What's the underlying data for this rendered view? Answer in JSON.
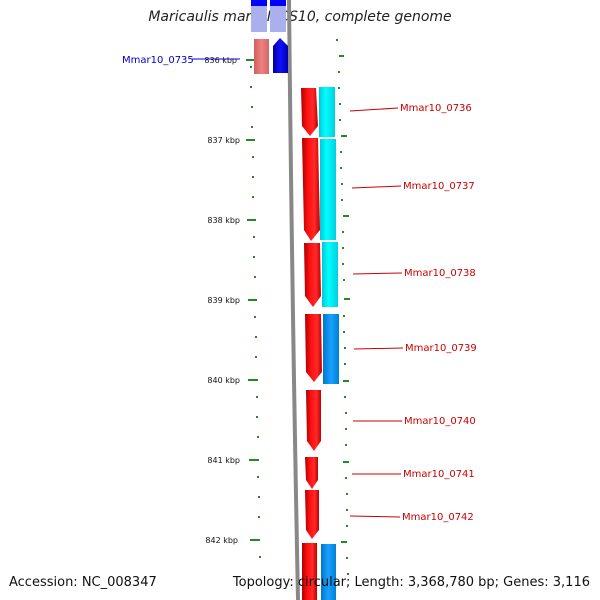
{
  "title": "Maricaulis maris MCS10, complete genome",
  "footer": {
    "accession": "Accession: NC_008347",
    "topology": "Topology: circular; Length: 3,368,780 bp; Genes: 3,116"
  },
  "colors": {
    "forward_cds": "#ff0000",
    "reverse_cds": "#0000ff",
    "feature_cyan": "#00ffff",
    "feature_skyblue": "#1aa0ff",
    "tick_green": "#228b22",
    "backbone": "#888888",
    "label_red": "#cc0000",
    "label_blue": "#0000cc"
  },
  "scale": {
    "tick_labels": [
      "836 kbp",
      "837 kbp",
      "838 kbp",
      "839 kbp",
      "840 kbp",
      "841 kbp",
      "842 kbp"
    ]
  },
  "gene_labels": [
    {
      "text": "Mmar10_0735",
      "color": "blue"
    },
    {
      "text": "Mmar10_0736",
      "color": "red"
    },
    {
      "text": "Mmar10_0737",
      "color": "red"
    },
    {
      "text": "Mmar10_0738",
      "color": "red"
    },
    {
      "text": "Mmar10_0739",
      "color": "red"
    },
    {
      "text": "Mmar10_0740",
      "color": "red"
    },
    {
      "text": "Mmar10_0741",
      "color": "red"
    },
    {
      "text": "Mmar10_0742",
      "color": "red"
    }
  ]
}
